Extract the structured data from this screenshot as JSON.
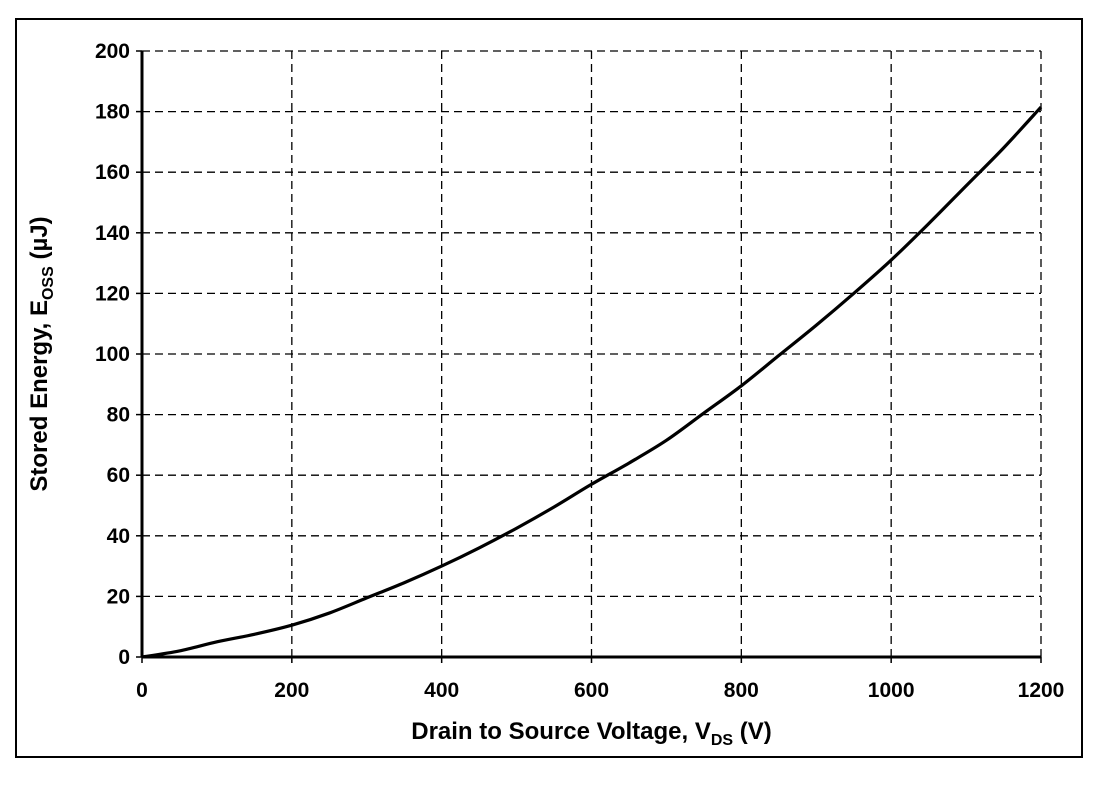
{
  "chart_data": {
    "type": "line",
    "xlabel": {
      "main": "Drain to Source Voltage, V",
      "sub": "DS",
      "tail": " (V)"
    },
    "ylabel": {
      "main": "Stored Energy, E",
      "sub": "OSS",
      "tail": "  (µJ)"
    },
    "xlim": [
      0,
      1200
    ],
    "ylim": [
      0,
      200
    ],
    "xticks": [
      0,
      200,
      400,
      600,
      800,
      1000,
      1200
    ],
    "yticks": [
      0,
      20,
      40,
      60,
      80,
      100,
      120,
      140,
      160,
      180,
      200
    ],
    "grid": true,
    "grid_style": "dashed",
    "legend": "none",
    "series": [
      {
        "color": "#000000",
        "x": [
          0,
          50,
          100,
          150,
          200,
          250,
          300,
          350,
          400,
          450,
          500,
          550,
          600,
          650,
          700,
          750,
          800,
          850,
          900,
          950,
          1000,
          1050,
          1100,
          1150,
          1200
        ],
        "values": [
          0,
          2,
          5,
          7.5,
          10.5,
          14.5,
          19.5,
          24.5,
          30,
          36,
          42.5,
          49.5,
          57,
          64,
          71.5,
          80.5,
          89.5,
          99.5,
          109.5,
          120,
          131,
          143,
          155.5,
          168,
          181.5
        ]
      }
    ]
  }
}
